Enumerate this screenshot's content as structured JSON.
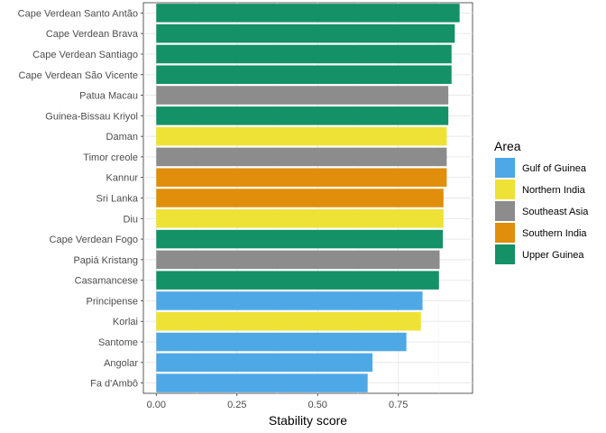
{
  "chart_data": {
    "type": "bar",
    "orientation": "horizontal",
    "title": "",
    "xlabel": "Stability score",
    "ylabel": "",
    "xlim": [
      -0.04,
      0.98
    ],
    "xticks": [
      0,
      0.25,
      0.5,
      0.75
    ],
    "xtick_labels": [
      "0.00",
      "0.25",
      "0.50",
      "0.75"
    ],
    "grid": true,
    "legend": {
      "title": "Area",
      "position": "right",
      "entries": [
        {
          "name": "Gulf of Guinea",
          "color": "#4EA8E6"
        },
        {
          "name": "Northern India",
          "color": "#EFE236"
        },
        {
          "name": "Southeast Asia",
          "color": "#8C8C8C"
        },
        {
          "name": "Southern India",
          "color": "#E08E0B"
        },
        {
          "name": "Upper Guinea",
          "color": "#149166"
        }
      ]
    },
    "categories": [
      "Cape Verdean Santo Antão",
      "Cape Verdean Brava",
      "Cape Verdean Santiago",
      "Cape Verdean São Vicente",
      "Patua Macau",
      "Guinea-Bissau Kriyol",
      "Daman",
      "Timor creole",
      "Kannur",
      "Sri Lanka",
      "Diu",
      "Cape Verdean Fogo",
      "Papiá Kristang",
      "Casamancese",
      "Principense",
      "Korlai",
      "Santome",
      "Angolar",
      "Fa d'Ambô"
    ],
    "values": [
      0.94,
      0.925,
      0.915,
      0.915,
      0.905,
      0.905,
      0.9,
      0.9,
      0.9,
      0.89,
      0.89,
      0.888,
      0.878,
      0.876,
      0.825,
      0.82,
      0.775,
      0.67,
      0.655
    ],
    "areas": [
      "Upper Guinea",
      "Upper Guinea",
      "Upper Guinea",
      "Upper Guinea",
      "Southeast Asia",
      "Upper Guinea",
      "Northern India",
      "Southeast Asia",
      "Southern India",
      "Southern India",
      "Northern India",
      "Upper Guinea",
      "Southeast Asia",
      "Upper Guinea",
      "Gulf of Guinea",
      "Northern India",
      "Gulf of Guinea",
      "Gulf of Guinea",
      "Gulf of Guinea"
    ]
  }
}
